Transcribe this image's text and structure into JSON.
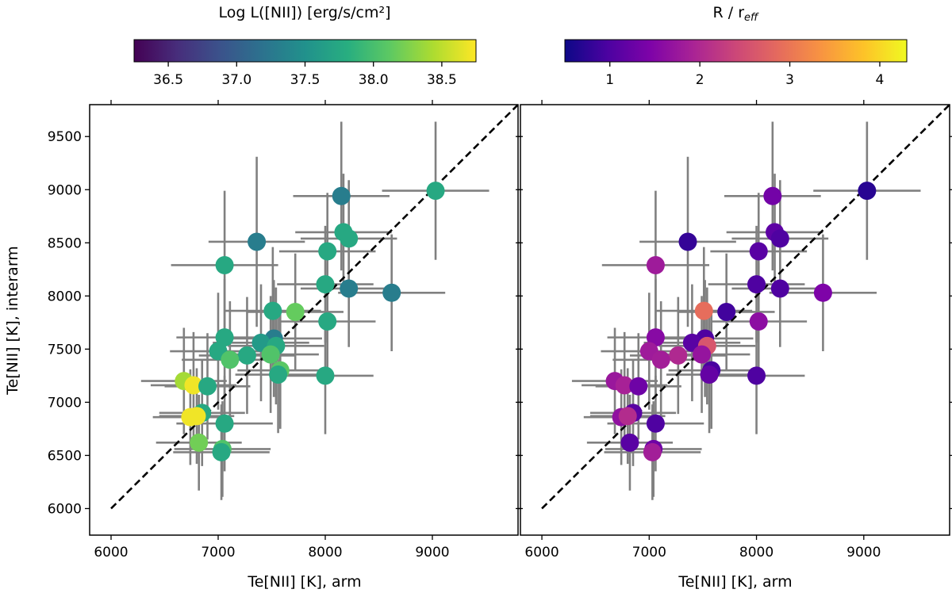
{
  "figure": {
    "left_colorbar_label": "Log L([NII]) [erg/s/cm²]",
    "right_colorbar_label_main": "R / r",
    "right_colorbar_label_sub": "eff",
    "left_colorbar_ticks": [
      "36.5",
      "37.0",
      "37.5",
      "38.0",
      "38.5"
    ],
    "right_colorbar_ticks": [
      "1",
      "2",
      "3",
      "4"
    ],
    "ylabel": "Te[NII] [K], interarm",
    "xlabel_left": "Te[NII] [K], arm",
    "xlabel_right": "Te[NII] [K], arm"
  },
  "chart_data": [
    {
      "type": "scatter",
      "panel": "left",
      "xlabel": "Te[NII] [K], arm",
      "ylabel": "Te[NII] [K], interarm",
      "xlim": [
        5800,
        9800
      ],
      "ylim": [
        5750,
        9800
      ],
      "xticks": [
        6000,
        7000,
        8000,
        9000
      ],
      "yticks": [
        6000,
        6500,
        7000,
        7500,
        8000,
        8500,
        9000,
        9500
      ],
      "one_to_one_line": {
        "from": [
          6000,
          6000
        ],
        "to": [
          9800,
          9800
        ],
        "style": "black dashed"
      },
      "color_by": "Log L([NII]) [erg/s/cm²]",
      "colormap": "viridis",
      "color_range": [
        36.25,
        38.75
      ],
      "colorbar_ticks": [
        36.5,
        37.0,
        37.5,
        38.0,
        38.5
      ],
      "errorbar_color": "#808080",
      "points": [
        {
          "x": 9030,
          "y": 8990,
          "xerr": 500,
          "yerr": 650,
          "c": 37.75
        },
        {
          "x": 8150,
          "y": 8940,
          "xerr": 450,
          "yerr": 700,
          "c": 37.3
        },
        {
          "x": 8170,
          "y": 8600,
          "xerr": 450,
          "yerr": 550,
          "c": 37.75
        },
        {
          "x": 8220,
          "y": 8540,
          "xerr": 450,
          "yerr": 550,
          "c": 37.75
        },
        {
          "x": 7360,
          "y": 8510,
          "xerr": 450,
          "yerr": 800,
          "c": 37.3
        },
        {
          "x": 8020,
          "y": 8420,
          "xerr": 450,
          "yerr": 550,
          "c": 37.75
        },
        {
          "x": 7060,
          "y": 8290,
          "xerr": 500,
          "yerr": 700,
          "c": 37.75
        },
        {
          "x": 8000,
          "y": 8110,
          "xerr": 450,
          "yerr": 550,
          "c": 37.75
        },
        {
          "x": 8220,
          "y": 8070,
          "xerr": 450,
          "yerr": 550,
          "c": 37.3
        },
        {
          "x": 8620,
          "y": 8030,
          "xerr": 500,
          "yerr": 550,
          "c": 37.3
        },
        {
          "x": 7510,
          "y": 7860,
          "xerr": 450,
          "yerr": 600,
          "c": 37.75
        },
        {
          "x": 7720,
          "y": 7850,
          "xerr": 450,
          "yerr": 550,
          "c": 38.15
        },
        {
          "x": 8020,
          "y": 7760,
          "xerr": 450,
          "yerr": 550,
          "c": 37.75
        },
        {
          "x": 7060,
          "y": 7610,
          "xerr": 450,
          "yerr": 550,
          "c": 37.75
        },
        {
          "x": 7520,
          "y": 7600,
          "xerr": 450,
          "yerr": 550,
          "c": 37.3
        },
        {
          "x": 7400,
          "y": 7560,
          "xerr": 450,
          "yerr": 550,
          "c": 37.6
        },
        {
          "x": 7540,
          "y": 7530,
          "xerr": 450,
          "yerr": 550,
          "c": 37.75
        },
        {
          "x": 7000,
          "y": 7480,
          "xerr": 450,
          "yerr": 550,
          "c": 37.75
        },
        {
          "x": 7270,
          "y": 7440,
          "xerr": 450,
          "yerr": 550,
          "c": 37.75
        },
        {
          "x": 7490,
          "y": 7450,
          "xerr": 450,
          "yerr": 550,
          "c": 38.05
        },
        {
          "x": 7110,
          "y": 7400,
          "xerr": 450,
          "yerr": 550,
          "c": 38.05
        },
        {
          "x": 7580,
          "y": 7300,
          "xerr": 400,
          "yerr": 550,
          "c": 38.1
        },
        {
          "x": 7560,
          "y": 7260,
          "xerr": 400,
          "yerr": 550,
          "c": 37.75
        },
        {
          "x": 8000,
          "y": 7250,
          "xerr": 450,
          "yerr": 550,
          "c": 37.75
        },
        {
          "x": 6680,
          "y": 7200,
          "xerr": 400,
          "yerr": 500,
          "c": 38.4
        },
        {
          "x": 6770,
          "y": 7160,
          "xerr": 400,
          "yerr": 500,
          "c": 38.7
        },
        {
          "x": 6900,
          "y": 7150,
          "xerr": 400,
          "yerr": 500,
          "c": 37.75
        },
        {
          "x": 6850,
          "y": 6900,
          "xerr": 400,
          "yerr": 500,
          "c": 37.75
        },
        {
          "x": 6740,
          "y": 6860,
          "xerr": 350,
          "yerr": 450,
          "c": 38.7
        },
        {
          "x": 6800,
          "y": 6870,
          "xerr": 350,
          "yerr": 450,
          "c": 38.7
        },
        {
          "x": 7060,
          "y": 6800,
          "xerr": 450,
          "yerr": 450,
          "c": 37.75
        },
        {
          "x": 6820,
          "y": 6620,
          "xerr": 400,
          "yerr": 450,
          "c": 38.2
        },
        {
          "x": 7040,
          "y": 6560,
          "xerr": 450,
          "yerr": 450,
          "c": 38.05
        },
        {
          "x": 7030,
          "y": 6530,
          "xerr": 450,
          "yerr": 450,
          "c": 37.75
        }
      ]
    },
    {
      "type": "scatter",
      "panel": "right",
      "xlabel": "Te[NII] [K], arm",
      "xlim": [
        5800,
        9800
      ],
      "ylim": [
        5750,
        9800
      ],
      "xticks": [
        6000,
        7000,
        8000,
        9000
      ],
      "one_to_one_line": {
        "from": [
          6000,
          6000
        ],
        "to": [
          9800,
          9800
        ],
        "style": "black dashed"
      },
      "color_by": "R / r_eff",
      "colormap": "plasma",
      "color_range": [
        0.5,
        4.3
      ],
      "colorbar_ticks": [
        1,
        2,
        3,
        4
      ],
      "errorbar_color": "#808080",
      "points": [
        {
          "x": 9030,
          "y": 8990,
          "xerr": 500,
          "yerr": 650,
          "c": 0.7
        },
        {
          "x": 8150,
          "y": 8940,
          "xerr": 450,
          "yerr": 700,
          "c": 1.35
        },
        {
          "x": 8170,
          "y": 8600,
          "xerr": 450,
          "yerr": 550,
          "c": 1.15
        },
        {
          "x": 8220,
          "y": 8540,
          "xerr": 450,
          "yerr": 550,
          "c": 1.0
        },
        {
          "x": 7360,
          "y": 8510,
          "xerr": 450,
          "yerr": 800,
          "c": 0.8
        },
        {
          "x": 8020,
          "y": 8420,
          "xerr": 450,
          "yerr": 550,
          "c": 1.1
        },
        {
          "x": 7060,
          "y": 8290,
          "xerr": 500,
          "yerr": 700,
          "c": 1.8
        },
        {
          "x": 8000,
          "y": 8110,
          "xerr": 450,
          "yerr": 550,
          "c": 1.0
        },
        {
          "x": 8220,
          "y": 8070,
          "xerr": 450,
          "yerr": 550,
          "c": 1.0
        },
        {
          "x": 8620,
          "y": 8030,
          "xerr": 500,
          "yerr": 550,
          "c": 1.45
        },
        {
          "x": 7510,
          "y": 7860,
          "xerr": 450,
          "yerr": 600,
          "c": 2.9
        },
        {
          "x": 7720,
          "y": 7850,
          "xerr": 450,
          "yerr": 550,
          "c": 0.9
        },
        {
          "x": 8020,
          "y": 7760,
          "xerr": 450,
          "yerr": 550,
          "c": 1.6
        },
        {
          "x": 7060,
          "y": 7610,
          "xerr": 450,
          "yerr": 550,
          "c": 1.55
        },
        {
          "x": 7520,
          "y": 7600,
          "xerr": 450,
          "yerr": 550,
          "c": 1.0
        },
        {
          "x": 7400,
          "y": 7560,
          "xerr": 450,
          "yerr": 550,
          "c": 1.1
        },
        {
          "x": 7540,
          "y": 7530,
          "xerr": 450,
          "yerr": 550,
          "c": 2.6
        },
        {
          "x": 7000,
          "y": 7480,
          "xerr": 450,
          "yerr": 550,
          "c": 1.8
        },
        {
          "x": 7270,
          "y": 7440,
          "xerr": 450,
          "yerr": 550,
          "c": 2.0
        },
        {
          "x": 7490,
          "y": 7450,
          "xerr": 450,
          "yerr": 550,
          "c": 1.7
        },
        {
          "x": 7110,
          "y": 7400,
          "xerr": 450,
          "yerr": 550,
          "c": 1.85
        },
        {
          "x": 7580,
          "y": 7300,
          "xerr": 400,
          "yerr": 550,
          "c": 0.95
        },
        {
          "x": 7560,
          "y": 7260,
          "xerr": 400,
          "yerr": 550,
          "c": 1.2
        },
        {
          "x": 8000,
          "y": 7250,
          "xerr": 450,
          "yerr": 550,
          "c": 1.0
        },
        {
          "x": 6680,
          "y": 7200,
          "xerr": 400,
          "yerr": 500,
          "c": 1.75
        },
        {
          "x": 6770,
          "y": 7160,
          "xerr": 400,
          "yerr": 500,
          "c": 1.9
        },
        {
          "x": 6900,
          "y": 7150,
          "xerr": 400,
          "yerr": 500,
          "c": 1.3
        },
        {
          "x": 6850,
          "y": 6900,
          "xerr": 400,
          "yerr": 500,
          "c": 1.1
        },
        {
          "x": 6740,
          "y": 6860,
          "xerr": 350,
          "yerr": 450,
          "c": 1.65
        },
        {
          "x": 6800,
          "y": 6870,
          "xerr": 350,
          "yerr": 450,
          "c": 2.05
        },
        {
          "x": 7060,
          "y": 6800,
          "xerr": 450,
          "yerr": 450,
          "c": 1.0
        },
        {
          "x": 6820,
          "y": 6620,
          "xerr": 400,
          "yerr": 450,
          "c": 1.1
        },
        {
          "x": 7040,
          "y": 6560,
          "xerr": 450,
          "yerr": 450,
          "c": 1.3
        },
        {
          "x": 7030,
          "y": 6530,
          "xerr": 450,
          "yerr": 450,
          "c": 1.85
        }
      ]
    }
  ]
}
